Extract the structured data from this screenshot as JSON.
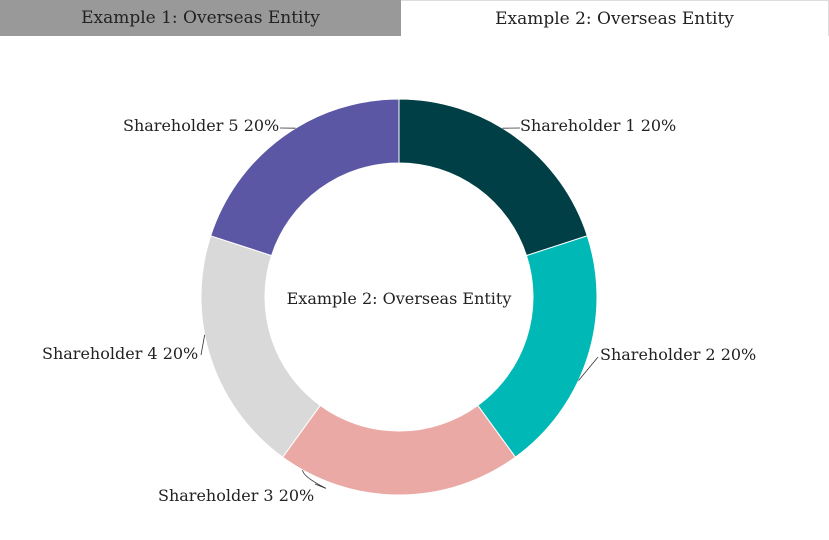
{
  "tabs": [
    {
      "label": "Example 1: Overseas Entity",
      "active": false
    },
    {
      "label": "Example 2: Overseas Entity",
      "active": true
    }
  ],
  "chart_data": {
    "type": "pie",
    "variant": "donut",
    "center_label": "Example 2: Overseas Entity",
    "slices": [
      {
        "name": "Shareholder 1",
        "value": 20,
        "label": "Shareholder 1 20%",
        "color": "#003f45"
      },
      {
        "name": "Shareholder 2",
        "value": 20,
        "label": "Shareholder 2 20%",
        "color": "#00b8b5"
      },
      {
        "name": "Shareholder 3",
        "value": 20,
        "label": "Shareholder 3 20%",
        "color": "#eba9a6"
      },
      {
        "name": "Shareholder 4",
        "value": 20,
        "label": "Shareholder 4 20%",
        "color": "#d9d9d9"
      },
      {
        "name": "Shareholder 5",
        "value": 20,
        "label": "Shareholder 5 20%",
        "color": "#5b57a5"
      }
    ]
  }
}
